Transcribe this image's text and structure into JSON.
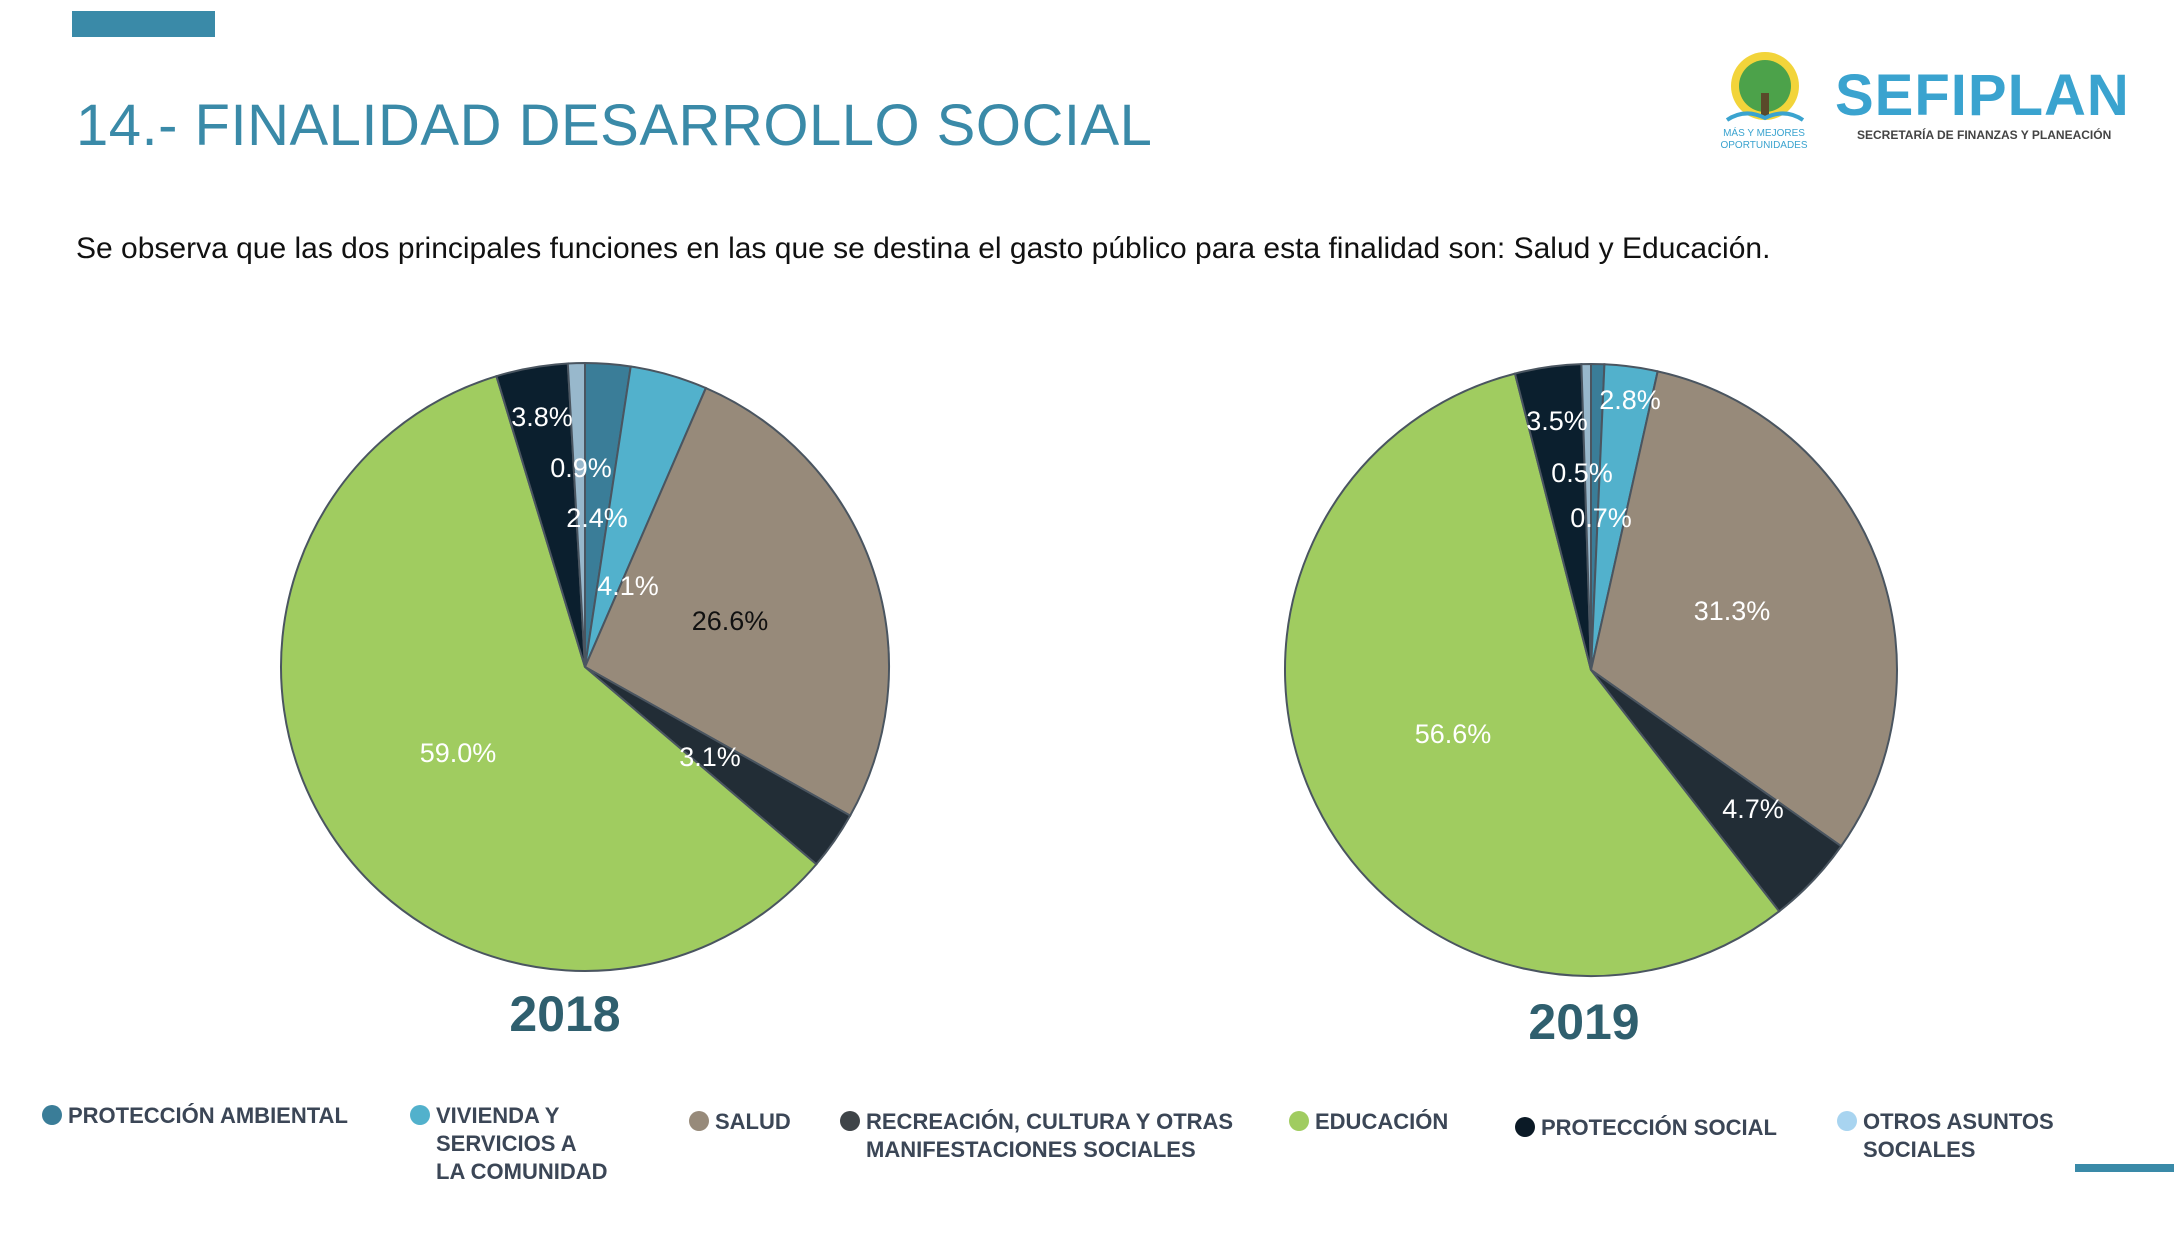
{
  "header": {
    "title": "14.- FINALIDAD DESARROLLO SOCIAL",
    "subtitle": "Se observa que las dos principales funciones en las que se destina el gasto público para esta finalidad son: Salud y Educación.",
    "accent_color": "#3a8aa8"
  },
  "logo": {
    "brand": "SEFIPLAN",
    "tagline": "SECRETARÍA DE FINANZAS Y PLANEACIÓN",
    "motto": "MÁS Y MEJORES OPORTUNIDADES"
  },
  "legend": [
    {
      "label": "PROTECCIÓN AMBIENTAL",
      "color": "#3a7d98"
    },
    {
      "label": "VIVIENDA Y SERVICIOS A LA COMUNIDAD",
      "color": "#52b1cc"
    },
    {
      "label": "SALUD",
      "color": "#978a7a"
    },
    {
      "label": "RECREACIÓN, CULTURA Y OTRAS MANIFESTACIONES SOCIALES",
      "color": "#3f4448"
    },
    {
      "label": "EDUCACIÓN",
      "color": "#a0cc60"
    },
    {
      "label": "PROTECCIÓN SOCIAL",
      "color": "#0b1a26"
    },
    {
      "label": "OTROS ASUNTOS SOCIALES",
      "color": "#a8d4f0"
    }
  ],
  "chart_data": [
    {
      "type": "pie",
      "title": "2018",
      "categories": [
        "PROTECCIÓN AMBIENTAL",
        "VIVIENDA Y SERVICIOS A LA COMUNIDAD",
        "SALUD",
        "RECREACIÓN, CULTURA Y OTRAS MANIFESTACIONES SOCIALES",
        "EDUCACIÓN",
        "PROTECCIÓN SOCIAL",
        "OTROS ASUNTOS SOCIALES"
      ],
      "values": [
        2.4,
        4.1,
        26.6,
        3.1,
        59.0,
        3.8,
        0.9
      ],
      "labels": [
        "2.4%",
        "4.1%",
        "26.6%",
        "3.1%",
        "59.0%",
        "3.8%",
        "0.9%"
      ],
      "colors": [
        "#3a7d98",
        "#52b1cc",
        "#978a7a",
        "#222d36",
        "#a0cc60",
        "#0b1f2e",
        "#98b8cc"
      ],
      "legend": "bottom"
    },
    {
      "type": "pie",
      "title": "2019",
      "categories": [
        "PROTECCIÓN AMBIENTAL",
        "VIVIENDA Y SERVICIOS A LA COMUNIDAD",
        "SALUD",
        "RECREACIÓN, CULTURA Y OTRAS MANIFESTACIONES SOCIALES",
        "EDUCACIÓN",
        "PROTECCIÓN SOCIAL",
        "OTROS ASUNTOS SOCIALES"
      ],
      "values": [
        0.7,
        2.8,
        31.3,
        4.7,
        56.6,
        3.5,
        0.5
      ],
      "labels": [
        "0.7%",
        "2.8%",
        "31.3%",
        "4.7%",
        "56.6%",
        "3.5%",
        "0.5%"
      ],
      "colors": [
        "#3a7d98",
        "#52b1cc",
        "#978a7a",
        "#222d36",
        "#a0cc60",
        "#0b1f2e",
        "#98b8cc"
      ],
      "legend": "bottom"
    }
  ]
}
